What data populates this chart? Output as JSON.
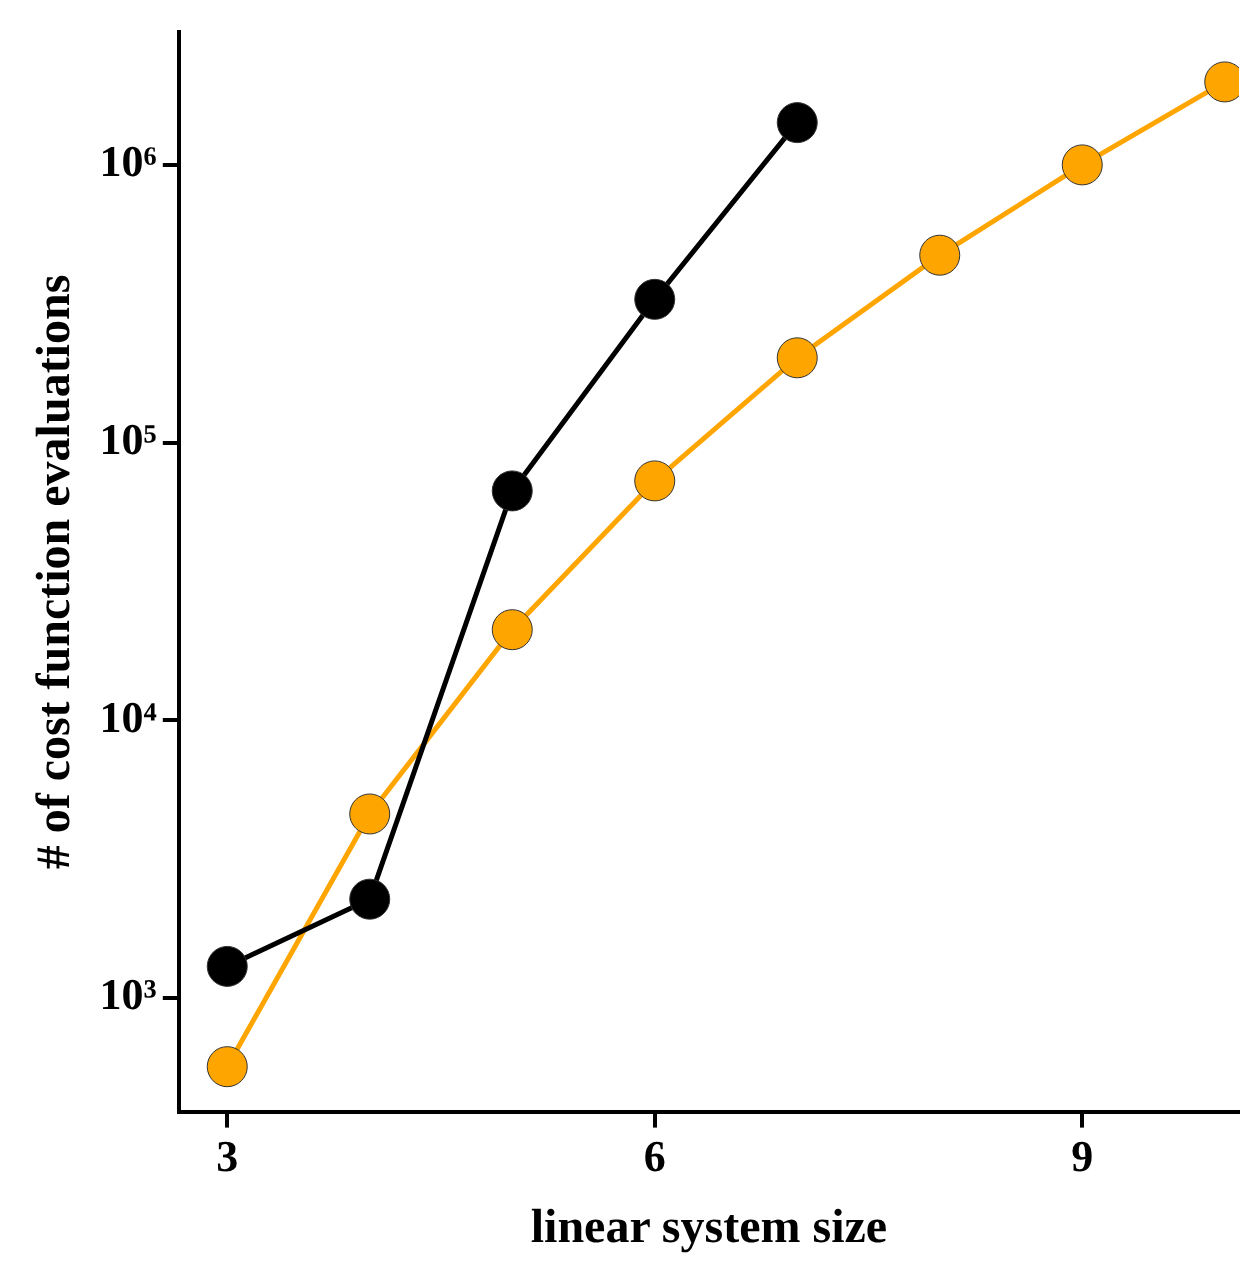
{
  "chart_data": {
    "type": "line",
    "xlabel": "linear system size",
    "ylabel": "# of cost function evaluations",
    "log": "y",
    "grid": false,
    "legend": false,
    "marker": "circle",
    "line_style": "solid",
    "xlim": [
      2.66,
      10.1
    ],
    "xticks": [
      3,
      6,
      9
    ],
    "ylim": [
      390,
      3000000
    ],
    "yticks": [
      {
        "value": 1000,
        "label": "10³"
      },
      {
        "value": 10000,
        "label": "10⁴"
      },
      {
        "value": 100000,
        "label": "10⁵"
      },
      {
        "value": 1000000,
        "label": "10⁶"
      }
    ],
    "series": [
      {
        "color": "#000000",
        "x": [
          3,
          4,
          5,
          6,
          7
        ],
        "values": [
          1300,
          2270,
          67000,
          328000,
          1420000
        ]
      },
      {
        "color": "#ffa500",
        "x": [
          3,
          4,
          5,
          6,
          7,
          8,
          9,
          10
        ],
        "values": [
          566,
          4600,
          21200,
          72800,
          202000,
          473000,
          1000000,
          1990000
        ]
      }
    ]
  }
}
